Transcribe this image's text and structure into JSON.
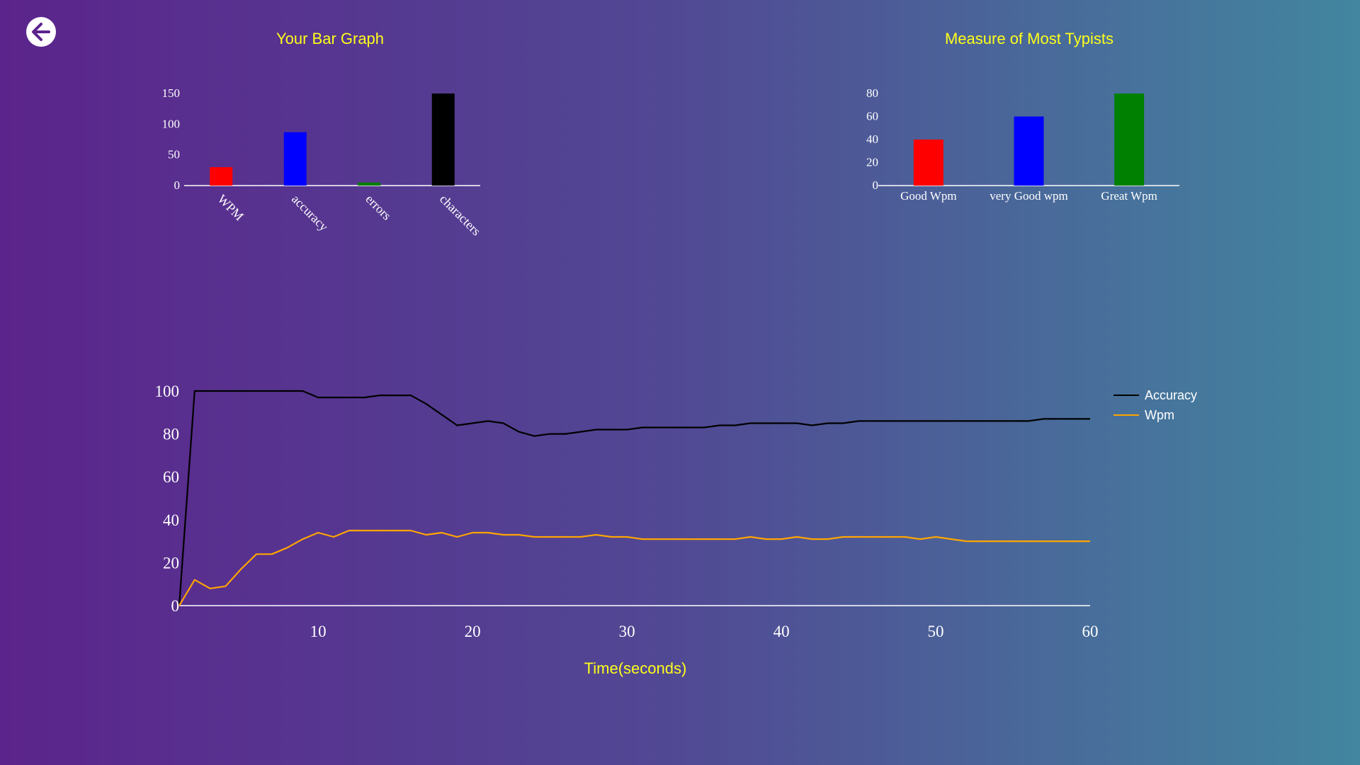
{
  "back_button": {
    "icon": "arrow-left-icon"
  },
  "chart_data": [
    {
      "type": "bar",
      "title": "Your Bar Graph",
      "categories": [
        "WPM",
        "accuracy",
        "errors",
        "characters"
      ],
      "values": [
        30,
        87,
        5,
        150
      ],
      "colors": [
        "#ff0000",
        "#0000ff",
        "#008000",
        "#000000"
      ],
      "ylim": [
        0,
        150
      ],
      "yticks": [
        "0",
        "50",
        "100",
        "150"
      ],
      "tick_rotation": 45
    },
    {
      "type": "bar",
      "title": "Measure of Most Typists",
      "categories": [
        "Good Wpm",
        "very Good wpm",
        "Great Wpm"
      ],
      "values": [
        40,
        60,
        80
      ],
      "colors": [
        "#ff0000",
        "#0000ff",
        "#008000"
      ],
      "ylim": [
        0,
        80
      ],
      "yticks": [
        "0",
        "20",
        "40",
        "60",
        "80"
      ]
    },
    {
      "type": "line",
      "xlabel": "Time(seconds)",
      "xlim": [
        1,
        60
      ],
      "ylim": [
        0,
        100
      ],
      "xticks": [
        "10",
        "20",
        "30",
        "40",
        "50",
        "60"
      ],
      "yticks": [
        "0",
        "20",
        "40",
        "60",
        "80",
        "100"
      ],
      "legend_position": "top-right",
      "x": [
        1,
        2,
        3,
        4,
        5,
        6,
        7,
        8,
        9,
        10,
        11,
        12,
        13,
        14,
        15,
        16,
        17,
        18,
        19,
        20,
        21,
        22,
        23,
        24,
        25,
        26,
        27,
        28,
        29,
        30,
        31,
        32,
        33,
        34,
        35,
        36,
        37,
        38,
        39,
        40,
        41,
        42,
        43,
        44,
        45,
        46,
        47,
        48,
        49,
        50,
        51,
        52,
        53,
        54,
        55,
        56,
        57,
        58,
        59,
        60
      ],
      "series": [
        {
          "name": "Accuracy",
          "color": "#000000",
          "values": [
            0,
            100,
            100,
            100,
            100,
            100,
            100,
            100,
            100,
            97,
            97,
            97,
            97,
            98,
            98,
            98,
            94,
            89,
            84,
            85,
            86,
            85,
            81,
            79,
            80,
            80,
            81,
            82,
            82,
            82,
            83,
            83,
            83,
            83,
            83,
            84,
            84,
            85,
            85,
            85,
            85,
            84,
            85,
            85,
            86,
            86,
            86,
            86,
            86,
            86,
            86,
            86,
            86,
            86,
            86,
            86,
            87,
            87,
            87,
            87
          ]
        },
        {
          "name": "Wpm",
          "color": "#ffa500",
          "values": [
            0,
            12,
            8,
            9,
            17,
            24,
            24,
            27,
            31,
            34,
            32,
            35,
            35,
            35,
            35,
            35,
            33,
            34,
            32,
            34,
            34,
            33,
            33,
            32,
            32,
            32,
            32,
            33,
            32,
            32,
            31,
            31,
            31,
            31,
            31,
            31,
            31,
            32,
            31,
            31,
            32,
            31,
            31,
            32,
            32,
            32,
            32,
            32,
            31,
            32,
            31,
            30,
            30,
            30,
            30,
            30,
            30,
            30,
            30,
            30
          ]
        }
      ]
    }
  ]
}
